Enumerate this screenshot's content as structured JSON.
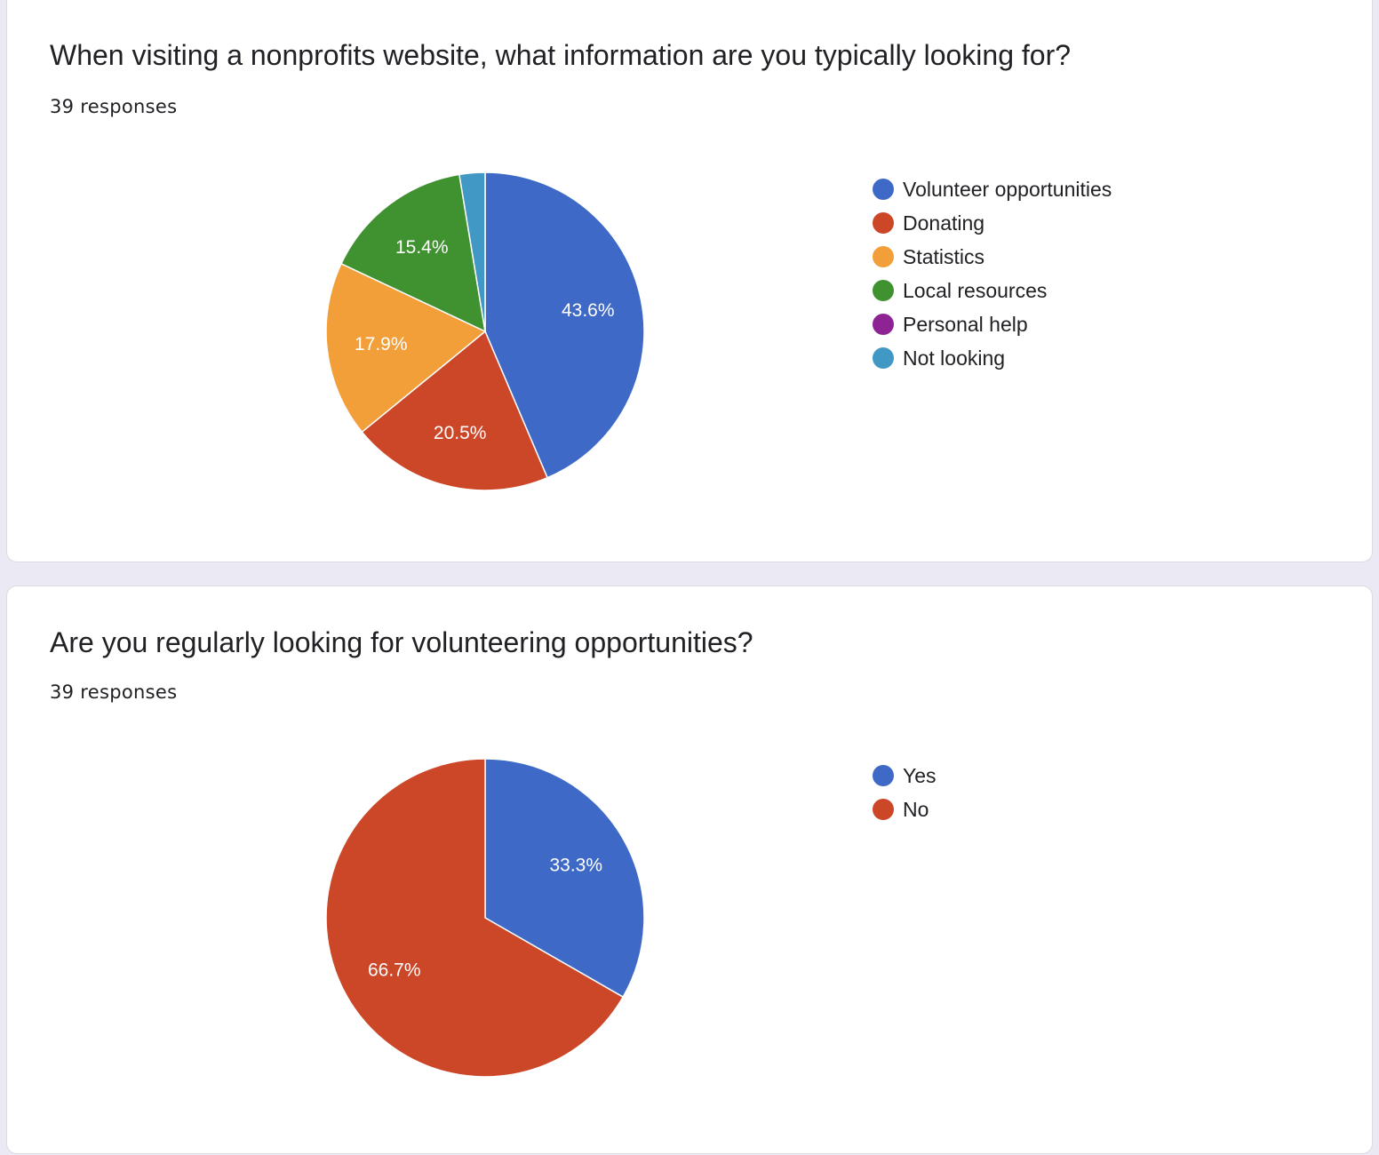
{
  "page": {
    "background": "#ebe9f4"
  },
  "charts": [
    {
      "title": "When visiting a nonprofits website, what information are you typically looking for?",
      "responses": "39 responses"
    },
    {
      "title": "Are you regularly looking for volunteering opportunities?",
      "responses": "39 responses"
    }
  ],
  "chart_data": [
    {
      "type": "pie",
      "title": "When visiting a nonprofits website, what information are you typically looking for?",
      "legend_position": "right",
      "start_angle_deg": 90,
      "direction": "clockwise",
      "slices": [
        {
          "label": "Volunteer opportunities",
          "value": 43.6,
          "display": "43.6%",
          "color": "#3e69c6"
        },
        {
          "label": "Donating",
          "value": 20.5,
          "display": "20.5%",
          "color": "#cc4628"
        },
        {
          "label": "Statistics",
          "value": 17.9,
          "display": "17.9%",
          "color": "#f29e39"
        },
        {
          "label": "Local resources",
          "value": 15.4,
          "display": "15.4%",
          "color": "#3f922f"
        },
        {
          "label": "Personal help",
          "value": 0,
          "display": "",
          "color": "#8e2493"
        },
        {
          "label": "Not looking",
          "value": 2.6,
          "display": "",
          "color": "#4198c5"
        }
      ]
    },
    {
      "type": "pie",
      "title": "Are you regularly looking for volunteering opportunities?",
      "legend_position": "right",
      "start_angle_deg": 90,
      "direction": "clockwise",
      "slices": [
        {
          "label": "Yes",
          "value": 33.3,
          "display": "33.3%",
          "color": "#3e69c6"
        },
        {
          "label": "No",
          "value": 66.7,
          "display": "66.7%",
          "color": "#cc4628"
        }
      ]
    }
  ]
}
